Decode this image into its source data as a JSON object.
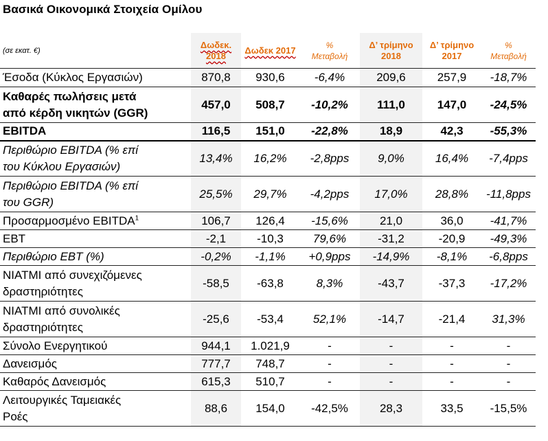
{
  "title": "Βασικά Οικονομικά Στοιχεία Ομίλου",
  "header": {
    "unit": "(σε εκατ. €)",
    "col1": "Δωδεκ. 2018",
    "col2": "Δωδεκ 2017",
    "col3_a": "%",
    "col3_b": "Μεταβολή",
    "col4_a": "Δ’ τρίμηνο",
    "col4_b": "2018",
    "col5_a": "Δ’ τρίμηνο",
    "col5_b": "2017",
    "col6_a": "%",
    "col6_b": "Μεταβολή"
  },
  "rows": [
    {
      "label": "Έσοδα (Κύκλος Εργασιών)",
      "v": [
        "870,8",
        "930,6",
        "-6,4%",
        "209,6",
        "257,9",
        "-18,7%"
      ]
    },
    {
      "label_a": "Καθαρές πωλήσεις μετά",
      "label_b": "από κέρδη νικητών (GGR)",
      "v": [
        "457,0",
        "508,7",
        "-10,2%",
        "111,0",
        "147,0",
        "-24,5%"
      ]
    },
    {
      "label": "EBITDA",
      "v": [
        "116,5",
        "151,0",
        "-22,8%",
        "18,9",
        "42,3",
        "-55,3%"
      ]
    },
    {
      "label_a": "Περιθώριο EBITDA (% επί",
      "label_b": "του Κύκλου Εργασιών)",
      "v": [
        "13,4%",
        "16,2%",
        "-2,8pps",
        "9,0%",
        "16,4%",
        "-7,4pps"
      ]
    },
    {
      "label_a": "Περιθώριο EBITDA (% επί",
      "label_b": "του GGR)",
      "v": [
        "25,5%",
        "29,7%",
        "-4,2pps",
        "17,0%",
        "28,8%",
        "-11,8pps"
      ]
    },
    {
      "label": "Προσαρμοσμένο EBITDA",
      "sup": "1",
      "v": [
        "106,7",
        "126,4",
        "-15,6%",
        "21,0",
        "36,0",
        "-41,7%"
      ]
    },
    {
      "label": "EBT",
      "v": [
        "-2,1",
        "-10,3",
        "79,6%",
        "-31,2",
        "-20,9",
        "-49,3%"
      ]
    },
    {
      "label": "Περιθώριο EBT (%)",
      "v": [
        "-0,2%",
        "-1,1%",
        "+0,9pps",
        "-14,9%",
        "-8,1%",
        "-6,8pps"
      ]
    },
    {
      "label_a": "ΝΙΑΤΜΙ από συνεχιζόμενες",
      "label_b": "δραστηριότητες",
      "v": [
        "-58,5",
        "-63,8",
        "8,3%",
        "-43,7",
        "-37,3",
        "-17,2%"
      ]
    },
    {
      "label_a": "ΝΙΑΤΜΙ από συνολικές",
      "label_b": "δραστηριότητες",
      "v": [
        "-25,6",
        "-53,4",
        "52,1%",
        "-14,7",
        "-21,4",
        "31,3%"
      ]
    },
    {
      "label": "Σύνολο Ενεργητικού",
      "v": [
        "944,1",
        "1.021,9",
        "-",
        "-",
        "-",
        "-"
      ]
    },
    {
      "label": "Δανεισμός",
      "v": [
        "777,7",
        "748,7",
        "-",
        "-",
        "-",
        "-"
      ]
    },
    {
      "label": "Καθαρός Δανεισμός",
      "v": [
        "615,3",
        "510,7",
        "-",
        "-",
        "-",
        "-"
      ]
    },
    {
      "label_a": "Λειτουργικές Ταμειακές",
      "label_b": "Ροές",
      "v": [
        "88,6",
        "154,0",
        "-42,5%",
        "28,3",
        "33,5",
        "-15,5%"
      ]
    }
  ]
}
